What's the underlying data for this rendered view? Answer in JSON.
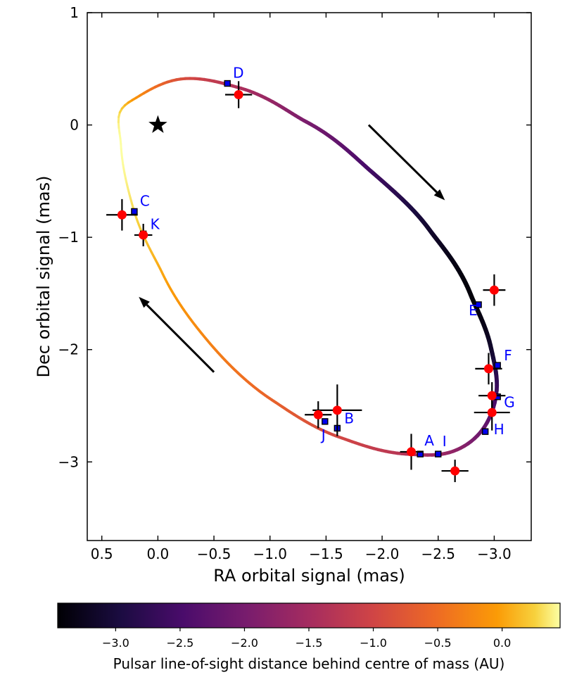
{
  "chart_data": {
    "type": "scatter",
    "xlabel": "RA orbital signal (mas)",
    "ylabel": "Dec orbital signal (mas)",
    "xlim": [
      0.63,
      -3.33
    ],
    "ylim": [
      -3.7,
      1.0
    ],
    "x_ticks": [
      0.5,
      0.0,
      -0.5,
      -1.0,
      -1.5,
      -2.0,
      -2.5,
      -3.0
    ],
    "x_tick_labels": [
      "0.5",
      "0.0",
      "−0.5",
      "−1.0",
      "−1.5",
      "−2.0",
      "−2.5",
      "−3.0"
    ],
    "y_ticks": [
      1,
      0,
      -1,
      -2,
      -3
    ],
    "y_tick_labels": [
      "1",
      "0",
      "−1",
      "−2",
      "−3"
    ],
    "grid": false,
    "orbit": {
      "center_ra": -1.42,
      "center_dec": -1.25,
      "colormap": "inferno",
      "samples": [
        {
          "ra": 0.33,
          "dec": -0.17
        },
        {
          "ra": 0.22,
          "dec": -0.74
        },
        {
          "ra": -0.04,
          "dec": -1.32
        },
        {
          "ra": -0.46,
          "dec": -1.94
        },
        {
          "ra": -1.02,
          "dec": -2.45
        },
        {
          "ra": -1.62,
          "dec": -2.78
        },
        {
          "ra": -2.22,
          "dec": -2.93
        },
        {
          "ra": -2.62,
          "dec": -2.91
        },
        {
          "ra": -2.89,
          "dec": -2.72
        },
        {
          "ra": -3.02,
          "dec": -2.38
        },
        {
          "ra": -2.97,
          "dec": -1.98
        },
        {
          "ra": -2.79,
          "dec": -1.51
        },
        {
          "ra": -2.42,
          "dec": -0.93
        },
        {
          "ra": -1.91,
          "dec": -0.42
        },
        {
          "ra": -1.32,
          "dec": 0.03
        },
        {
          "ra": -0.73,
          "dec": 0.33
        },
        {
          "ra": -0.21,
          "dec": 0.41
        },
        {
          "ra": 0.18,
          "dec": 0.25
        },
        {
          "ra": 0.34,
          "dec": 0.11
        }
      ],
      "depth": [
        0.45,
        0.3,
        0.02,
        -0.28,
        -0.62,
        -0.98,
        -1.35,
        -1.72,
        -2.15,
        -2.6,
        -3.15,
        -3.4,
        -3.1,
        -2.55,
        -1.95,
        -1.4,
        -0.85,
        -0.15,
        0.3
      ]
    },
    "barycentre": {
      "ra": 0.0,
      "dec": 0.0
    },
    "model_points": [
      {
        "label": "A",
        "ra": -2.34,
        "dec": -2.93
      },
      {
        "label": "B",
        "ra": -1.6,
        "dec": -2.7
      },
      {
        "label": "C",
        "ra": 0.21,
        "dec": -0.77
      },
      {
        "label": "D",
        "ra": -0.62,
        "dec": 0.37
      },
      {
        "label": "E",
        "ra": -2.86,
        "dec": -1.6
      },
      {
        "label": "F",
        "ra": -3.03,
        "dec": -2.14
      },
      {
        "label": "G",
        "ra": -3.03,
        "dec": -2.42
      },
      {
        "label": "H",
        "ra": -2.92,
        "dec": -2.73
      },
      {
        "label": "I",
        "ra": -2.5,
        "dec": -2.93
      },
      {
        "label": "J",
        "ra": -1.49,
        "dec": -2.64
      },
      {
        "label": "K",
        "ra": 0.13,
        "dec": -0.97
      }
    ],
    "observations": [
      {
        "ra": -2.26,
        "dec": -2.91,
        "ra_err": 0.1,
        "dec_err": 0.16
      },
      {
        "ra": -1.6,
        "dec": -2.54,
        "ra_err": 0.22,
        "dec_err": 0.23
      },
      {
        "ra": 0.32,
        "dec": -0.8,
        "ra_err": 0.14,
        "dec_err": 0.14
      },
      {
        "ra": -0.72,
        "dec": 0.27,
        "ra_err": 0.12,
        "dec_err": 0.12
      },
      {
        "ra": -3.0,
        "dec": -1.47,
        "ra_err": 0.1,
        "dec_err": 0.14
      },
      {
        "ra": -2.95,
        "dec": -2.17,
        "ra_err": 0.12,
        "dec_err": 0.14
      },
      {
        "ra": -2.98,
        "dec": -2.41,
        "ra_err": 0.12,
        "dec_err": 0.12
      },
      {
        "ra": -2.98,
        "dec": -2.56,
        "ra_err": 0.16,
        "dec_err": 0.16
      },
      {
        "ra": -2.65,
        "dec": -3.08,
        "ra_err": 0.12,
        "dec_err": 0.1
      },
      {
        "ra": -1.43,
        "dec": -2.58,
        "ra_err": 0.12,
        "dec_err": 0.12
      },
      {
        "ra": 0.13,
        "dec": -0.98,
        "ra_err": 0.08,
        "dec_err": 0.1
      }
    ],
    "direction_arrows": [
      {
        "from_ra": -1.88,
        "from_dec": 0.0,
        "to_ra": -2.56,
        "to_dec": -0.67
      },
      {
        "from_ra": -0.5,
        "from_dec": -2.2,
        "to_ra": 0.17,
        "to_dec": -1.53
      }
    ],
    "colorbar": {
      "label": "Pulsar line-of-sight distance behind centre of mass (AU)",
      "range": [
        -3.45,
        0.45
      ],
      "ticks": [
        -3.0,
        -2.5,
        -2.0,
        -1.5,
        -1.0,
        -0.5,
        0.0
      ],
      "tick_labels": [
        "−3.0",
        "−2.5",
        "−2.0",
        "−1.5",
        "−1.0",
        "−0.5",
        "0.0"
      ]
    }
  }
}
